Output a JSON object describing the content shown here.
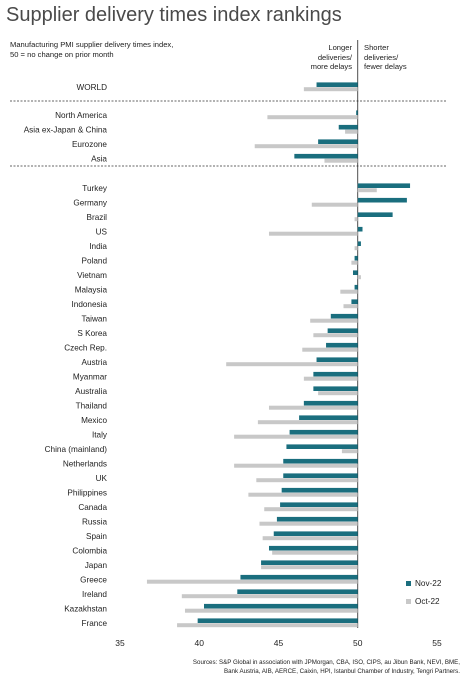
{
  "header": {
    "title": "Supplier delivery times index rankings",
    "subtitle": "Manufacturing PMI supplier delivery times index,\n50 = no change on prior month",
    "note_left": "Longer\ndeliveries/\nmore delays",
    "note_right": "Shorter\ndeliveries/\nfewer delays"
  },
  "sources": "Sources: S&P Global in association with JPMorgan, CBA, ISO, CIPS, au Jibun Bank, NEVI, BME,\nBank Austria, AIB, AERCE, Caixin, HPI, Istanbul Chamber of Industry, Tengri Partners.",
  "colors": {
    "nov": "#1a6e7e",
    "oct": "#c8c8c8"
  },
  "chart_data": {
    "type": "bar",
    "orientation": "horizontal",
    "title": "Supplier delivery times index rankings",
    "xlim": [
      35,
      55
    ],
    "xticks": [
      35,
      40,
      45,
      50,
      55
    ],
    "baseline": 50,
    "legend_position": "bottom-right",
    "groups": [
      {
        "categories": [
          "WORLD"
        ]
      },
      {
        "categories": [
          "North America",
          "Asia ex-Japan & China",
          "Eurozone",
          "Asia"
        ]
      },
      {
        "categories": [
          "Turkey",
          "Germany",
          "Brazil",
          "US",
          "India",
          "Poland",
          "Vietnam",
          "Malaysia",
          "Indonesia",
          "Taiwan",
          "S Korea",
          "Czech Rep.",
          "Austria",
          "Myanmar",
          "Australia",
          "Thailand",
          "Mexico",
          "Italy",
          "China (mainland)",
          "Netherlands",
          "UK",
          "Philippines",
          "Canada",
          "Russia",
          "Spain",
          "Colombia",
          "Japan",
          "Greece",
          "Ireland",
          "Kazakhstan",
          "France"
        ]
      }
    ],
    "categories": [
      "WORLD",
      "North America",
      "Asia ex-Japan & China",
      "Eurozone",
      "Asia",
      "Turkey",
      "Germany",
      "Brazil",
      "US",
      "India",
      "Poland",
      "Vietnam",
      "Malaysia",
      "Indonesia",
      "Taiwan",
      "S Korea",
      "Czech Rep.",
      "Austria",
      "Myanmar",
      "Australia",
      "Thailand",
      "Mexico",
      "Italy",
      "China (mainland)",
      "Netherlands",
      "UK",
      "Philippines",
      "Canada",
      "Russia",
      "Spain",
      "Colombia",
      "Japan",
      "Greece",
      "Ireland",
      "Kazakhstan",
      "France"
    ],
    "series": [
      {
        "name": "Nov-22",
        "values": [
          47.4,
          49.9,
          48.8,
          47.5,
          46.0,
          53.3,
          53.1,
          52.2,
          50.3,
          50.2,
          49.8,
          49.7,
          49.8,
          49.6,
          48.3,
          48.1,
          48.0,
          47.4,
          47.2,
          47.2,
          46.6,
          46.3,
          45.7,
          45.5,
          45.3,
          45.3,
          45.2,
          45.1,
          44.9,
          44.7,
          44.4,
          43.9,
          42.6,
          42.4,
          40.3,
          39.9
        ]
      },
      {
        "name": "Oct-22",
        "values": [
          46.6,
          44.3,
          49.2,
          43.5,
          47.9,
          51.2,
          47.1,
          49.8,
          44.4,
          49.8,
          49.6,
          50.2,
          48.9,
          49.1,
          47.0,
          47.2,
          46.5,
          41.7,
          46.6,
          47.5,
          44.4,
          43.7,
          42.2,
          49.0,
          42.2,
          43.6,
          43.1,
          44.1,
          43.8,
          44.0,
          44.6,
          43.9,
          36.7,
          38.9,
          39.1,
          38.6
        ]
      }
    ]
  }
}
